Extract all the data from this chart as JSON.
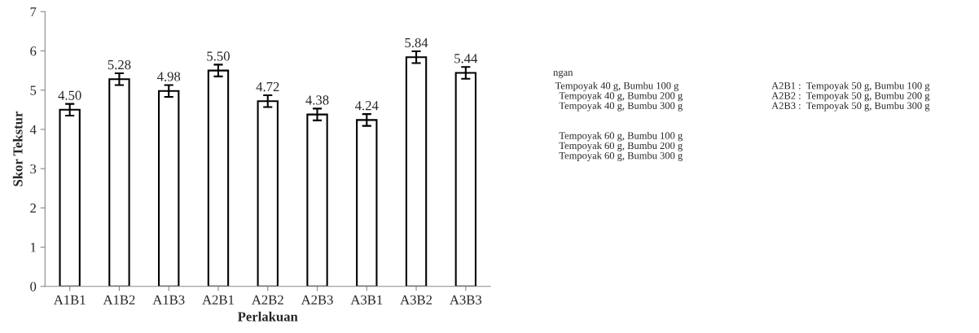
{
  "chart_data": {
    "type": "bar",
    "xlabel": "Perlakuan",
    "ylabel": "Skor Tekstur",
    "categories": [
      "A1B1",
      "A1B2",
      "A1B3",
      "A2B1",
      "A2B2",
      "A2B3",
      "A3B1",
      "A3B2",
      "A3B3"
    ],
    "values": [
      4.5,
      5.28,
      4.98,
      5.5,
      4.72,
      4.38,
      4.24,
      5.84,
      5.44
    ],
    "value_labels": [
      "4.50",
      "5.28",
      "4.98",
      "5.50",
      "4.72",
      "4.38",
      "4.24",
      "5.84",
      "5.44"
    ],
    "errors": [
      0.15,
      0.15,
      0.15,
      0.15,
      0.15,
      0.15,
      0.15,
      0.15,
      0.15
    ],
    "color": "#ffffff",
    "ylim": [
      0,
      7
    ],
    "yticks": [
      0,
      1,
      2,
      3,
      4,
      5,
      6,
      7
    ],
    "grid": false,
    "legend": false,
    "annotations": [
      "ngan",
      "Tempoyak 40 g, Bumbu 100 g",
      "Tempoyak 40 g, Bumbu 200 g",
      "Tempoyak 40 g, Bumbu 300 g",
      "Tempoyak 60 g, Bumbu 100 g",
      "Tempoyak 60 g, Bumbu 200 g",
      "Tempoyak 60 g, Bumbu 300 g",
      "A2B1 :  Tempoyak 50 g, Bumbu 100 g",
      "A2B2 :  Tempoyak 50 g, Bumbu 200 g",
      "A2B3 :  Tempoyak 50 g, Bumbu 300 g"
    ]
  }
}
